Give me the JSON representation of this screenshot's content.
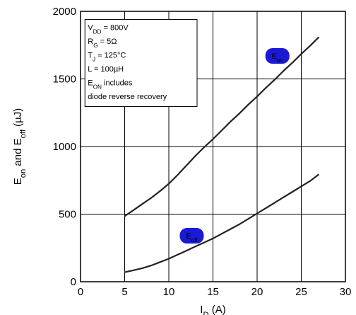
{
  "chart_data": {
    "type": "line",
    "xlabel_main": "I",
    "xlabel_sub": "D",
    "xlabel_unit": " (A)",
    "ylabel_parts": [
      {
        "t": "E",
        "sub": false
      },
      {
        "t": "on",
        "sub": true
      },
      {
        "t": " and E",
        "sub": false
      },
      {
        "t": "off",
        "sub": true
      },
      {
        "t": " (µJ)",
        "sub": false
      }
    ],
    "xlim": [
      0,
      30
    ],
    "ylim": [
      0,
      2000
    ],
    "xticks": [
      0,
      5,
      10,
      15,
      20,
      25,
      30
    ],
    "yticks": [
      0,
      500,
      1000,
      1500,
      2000
    ],
    "grid": true,
    "series": [
      {
        "name_main": "E",
        "name_sub": "on",
        "x": [
          5,
          6,
          7,
          8,
          9,
          10,
          11,
          12,
          13,
          14,
          15,
          16,
          17,
          18,
          19,
          20,
          21,
          22,
          23,
          24,
          25,
          26,
          27
        ],
        "y": [
          485,
          530,
          575,
          620,
          670,
          725,
          790,
          860,
          930,
          995,
          1055,
          1120,
          1185,
          1245,
          1310,
          1370,
          1435,
          1495,
          1560,
          1620,
          1685,
          1745,
          1810
        ],
        "tag_at": [
          22.3,
          1670
        ]
      },
      {
        "name_main": "E",
        "name_sub": "off",
        "x": [
          5,
          6,
          7,
          8,
          9,
          10,
          11,
          12,
          13,
          14,
          15,
          16,
          17,
          18,
          19,
          20,
          21,
          22,
          23,
          24,
          25,
          26,
          27
        ],
        "y": [
          70,
          85,
          100,
          120,
          145,
          170,
          200,
          230,
          260,
          290,
          320,
          355,
          390,
          425,
          465,
          505,
          545,
          585,
          625,
          665,
          705,
          745,
          795
        ],
        "tag_at": [
          12.6,
          340
        ]
      }
    ],
    "conditions": [
      {
        "main": "V",
        "sub": "DD",
        "rest": " = 800V"
      },
      {
        "main": "R",
        "sub": "G",
        "rest": " = 5Ω"
      },
      {
        "main": "T",
        "sub": "J",
        "rest": " = 125°C"
      },
      {
        "main": "L = 100µH",
        "sub": "",
        "rest": ""
      },
      {
        "main": "E",
        "sub": "ON",
        "rest": "  includes"
      },
      {
        "main": "diode  reverse recovery",
        "sub": "",
        "rest": ""
      }
    ],
    "colors": {
      "line": "#222222",
      "grid": "#000000",
      "tag_fill": "#1a1ad4"
    }
  }
}
